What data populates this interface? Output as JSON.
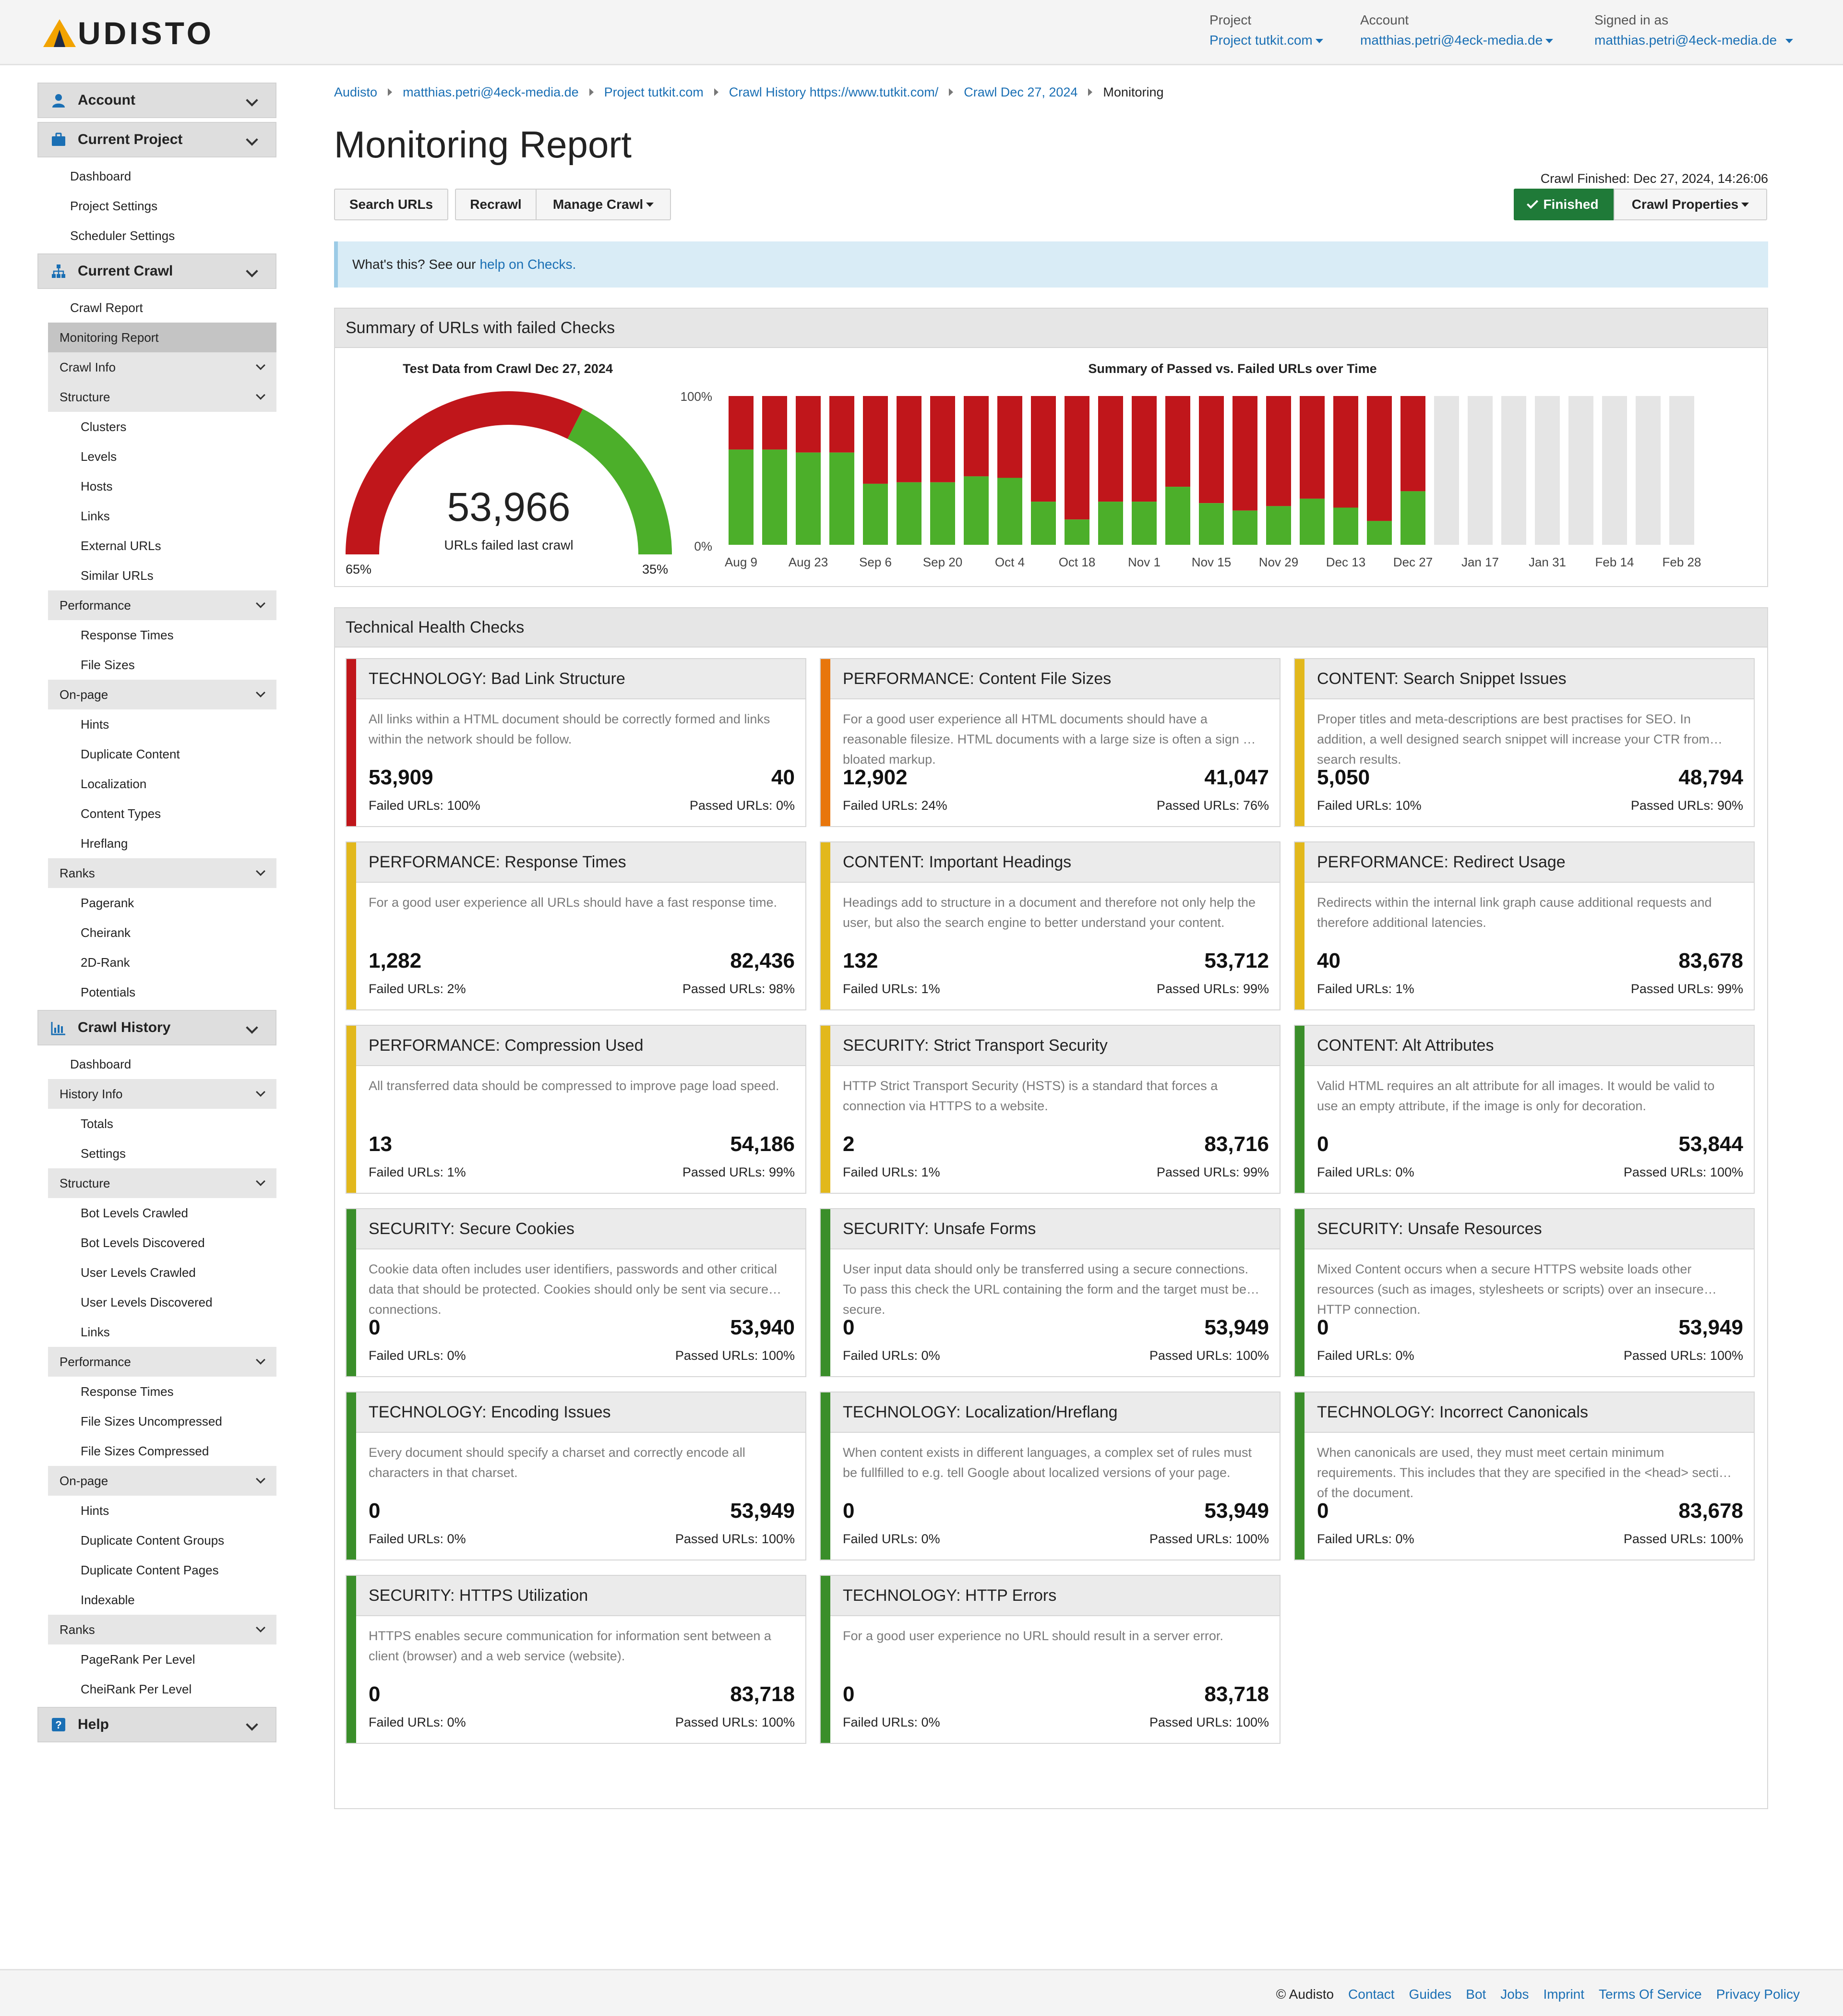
{
  "header": {
    "logo_text": "UDISTO",
    "project_label": "Project",
    "project_value": "Project tutkit.com",
    "account_label": "Account",
    "account_value": "matthias.petri@4eck-media.de",
    "signed_label": "Signed in as",
    "signed_value": "matthias.petri@4eck-media.de"
  },
  "sidebar": {
    "account": "Account",
    "current_project": "Current Project",
    "project_items": [
      "Dashboard",
      "Project Settings",
      "Scheduler Settings"
    ],
    "current_crawl": "Current Crawl",
    "crawl_report": "Crawl Report",
    "monitoring_report": "Monitoring Report",
    "crawl_info": "Crawl Info",
    "structure": "Structure",
    "structure_items": [
      "Clusters",
      "Levels",
      "Hosts",
      "Links",
      "External URLs",
      "Similar URLs"
    ],
    "performance": "Performance",
    "performance_items": [
      "Response Times",
      "File Sizes"
    ],
    "onpage": "On-page",
    "onpage_items": [
      "Hints",
      "Duplicate Content",
      "Localization",
      "Content Types",
      "Hreflang"
    ],
    "ranks": "Ranks",
    "ranks_items": [
      "Pagerank",
      "Cheirank",
      "2D-Rank",
      "Potentials"
    ],
    "crawl_history": "Crawl History",
    "history_dashboard": "Dashboard",
    "history_info": "History Info",
    "history_info_items": [
      "Totals",
      "Settings"
    ],
    "h_structure": "Structure",
    "h_structure_items": [
      "Bot Levels Crawled",
      "Bot Levels Discovered",
      "User Levels Crawled",
      "User Levels Discovered",
      "Links"
    ],
    "h_performance": "Performance",
    "h_performance_items": [
      "Response Times",
      "File Sizes Uncompressed",
      "File Sizes Compressed"
    ],
    "h_onpage": "On-page",
    "h_onpage_items": [
      "Hints",
      "Duplicate Content Groups",
      "Duplicate Content Pages",
      "Indexable"
    ],
    "h_ranks": "Ranks",
    "h_ranks_items": [
      "PageRank Per Level",
      "CheiRank Per Level"
    ],
    "help": "Help"
  },
  "breadcrumb": [
    "Audisto",
    "matthias.petri@4eck-media.de",
    "Project tutkit.com",
    "Crawl History https://www.tutkit.com/",
    "Crawl Dec 27, 2024",
    "Monitoring"
  ],
  "page_title": "Monitoring Report",
  "toolbar": {
    "search_urls": "Search URLs",
    "recrawl": "Recrawl",
    "manage_crawl": "Manage Crawl",
    "crawl_finished": "Crawl Finished: Dec 27, 2024, 14:26:06",
    "finished": "Finished",
    "crawl_properties": "Crawl Properties"
  },
  "info": {
    "text": "What's this? See our",
    "link": "help on Checks."
  },
  "summary": {
    "heading": "Summary of URLs with failed Checks",
    "gauge_title": "Test Data from Crawl Dec 27, 2024",
    "gauge_value": "53,966",
    "gauge_caption": "URLs failed last crawl",
    "gauge_left": "65%",
    "gauge_right": "35%",
    "failed_fraction": 0.65,
    "chart_title": "Summary of Passed vs. Failed URLs over Time"
  },
  "chart_data": {
    "type": "bar",
    "title": "Summary of Passed vs. Failed URLs over Time",
    "y_ticks": [
      "100%",
      "0%"
    ],
    "x_tick_labels": [
      "Aug 9",
      "Aug 23",
      "Sep 6",
      "Sep 20",
      "Oct 4",
      "Oct 18",
      "Nov 1",
      "Nov 15",
      "Nov 29",
      "Dec 13",
      "Dec 27",
      "Jan 17",
      "Jan 31",
      "Feb 14",
      "Feb 28"
    ],
    "ylim": [
      0,
      100
    ],
    "stacked": true,
    "colors": {
      "passed": "#4caf2a",
      "failed": "#c0161b",
      "empty": "#e5e5e5"
    },
    "passed_pct": [
      64,
      64,
      62,
      62,
      41,
      42,
      42,
      46,
      45,
      29,
      17,
      29,
      29,
      39,
      28,
      23,
      26,
      31,
      25,
      16,
      36,
      null,
      null,
      null,
      null,
      null,
      null,
      null,
      null
    ],
    "series": [
      {
        "name": "Passed",
        "values": [
          64,
          64,
          62,
          62,
          41,
          42,
          42,
          46,
          45,
          29,
          17,
          29,
          29,
          39,
          28,
          23,
          26,
          31,
          25,
          16,
          36
        ]
      },
      {
        "name": "Failed",
        "values": [
          36,
          36,
          38,
          38,
          59,
          58,
          58,
          54,
          55,
          71,
          83,
          71,
          71,
          61,
          72,
          77,
          74,
          69,
          75,
          84,
          64
        ]
      }
    ]
  },
  "checks": {
    "heading": "Technical Health Checks",
    "colors": {
      "red": "#c0161b",
      "orange": "#e8760c",
      "yellow": "#e2b81c",
      "green": "#3a8e2a"
    },
    "items": [
      {
        "title": "TECHNOLOGY: Bad Link Structure",
        "desc": "All links within a HTML document should be correctly formed and links within the network should be follow.",
        "failed": "53,909",
        "passed": "40",
        "failed_lbl": "Failed URLs: 100%",
        "passed_lbl": "Passed URLs: 0%",
        "color": "red"
      },
      {
        "title": "PERFORMANCE: Content File Sizes",
        "desc": "For a good user experience all HTML documents should have a reasonable filesize. HTML documents with a large size is often a sign of bloated markup.",
        "failed": "12,902",
        "passed": "41,047",
        "failed_lbl": "Failed URLs: 24%",
        "passed_lbl": "Passed URLs: 76%",
        "color": "orange"
      },
      {
        "title": "CONTENT: Search Snippet Issues",
        "desc": "Proper titles and meta-descriptions are best practises for SEO. In addition, a well designed search snippet will increase your CTR from search results.",
        "failed": "5,050",
        "passed": "48,794",
        "failed_lbl": "Failed URLs: 10%",
        "passed_lbl": "Passed URLs: 90%",
        "color": "yellow"
      },
      {
        "title": "PERFORMANCE: Response Times",
        "desc": "For a good user experience all URLs should have a fast response time.",
        "failed": "1,282",
        "passed": "82,436",
        "failed_lbl": "Failed URLs: 2%",
        "passed_lbl": "Passed URLs: 98%",
        "color": "yellow"
      },
      {
        "title": "CONTENT: Important Headings",
        "desc": "Headings add to structure in a document and therefore not only help the user, but also the search engine to better understand your content.",
        "failed": "132",
        "passed": "53,712",
        "failed_lbl": "Failed URLs: 1%",
        "passed_lbl": "Passed URLs: 99%",
        "color": "yellow"
      },
      {
        "title": "PERFORMANCE: Redirect Usage",
        "desc": "Redirects within the internal link graph cause additional requests and therefore additional latencies.",
        "failed": "40",
        "passed": "83,678",
        "failed_lbl": "Failed URLs: 1%",
        "passed_lbl": "Passed URLs: 99%",
        "color": "yellow"
      },
      {
        "title": "PERFORMANCE: Compression Used",
        "desc": "All transferred data should be compressed to improve page load speed.",
        "failed": "13",
        "passed": "54,186",
        "failed_lbl": "Failed URLs: 1%",
        "passed_lbl": "Passed URLs: 99%",
        "color": "yellow"
      },
      {
        "title": "SECURITY: Strict Transport Security",
        "desc": "HTTP Strict Transport Security (HSTS) is a standard that forces a connection via HTTPS to a website.",
        "failed": "2",
        "passed": "83,716",
        "failed_lbl": "Failed URLs: 1%",
        "passed_lbl": "Passed URLs: 99%",
        "color": "yellow"
      },
      {
        "title": "CONTENT: Alt Attributes",
        "desc": "Valid HTML requires an alt attribute for all images. It would be valid to use an empty attribute, if the image is only for decoration.",
        "failed": "0",
        "passed": "53,844",
        "failed_lbl": "Failed URLs: 0%",
        "passed_lbl": "Passed URLs: 100%",
        "color": "green"
      },
      {
        "title": "SECURITY: Secure Cookies",
        "desc": "Cookie data often includes user identifiers, passwords and other critical data that should be protected. Cookies should only be sent via secure connections.",
        "failed": "0",
        "passed": "53,940",
        "failed_lbl": "Failed URLs: 0%",
        "passed_lbl": "Passed URLs: 100%",
        "color": "green"
      },
      {
        "title": "SECURITY: Unsafe Forms",
        "desc": "User input data should only be transferred using a secure connections. To pass this check the URL containing the form and the target must be secure.",
        "failed": "0",
        "passed": "53,949",
        "failed_lbl": "Failed URLs: 0%",
        "passed_lbl": "Passed URLs: 100%",
        "color": "green"
      },
      {
        "title": "SECURITY: Unsafe Resources",
        "desc": "Mixed Content occurs when a secure HTTPS website loads other resources (such as images, stylesheets or scripts) over an insecure HTTP connection.",
        "failed": "0",
        "passed": "53,949",
        "failed_lbl": "Failed URLs: 0%",
        "passed_lbl": "Passed URLs: 100%",
        "color": "green"
      },
      {
        "title": "TECHNOLOGY: Encoding Issues",
        "desc": "Every document should specify a charset and correctly encode all characters in that charset.",
        "failed": "0",
        "passed": "53,949",
        "failed_lbl": "Failed URLs: 0%",
        "passed_lbl": "Passed URLs: 100%",
        "color": "green"
      },
      {
        "title": "TECHNOLOGY: Localization/Hreflang",
        "desc": "When content exists in different languages, a complex set of rules must be fullfilled to e.g. tell Google about localized versions of your page.",
        "failed": "0",
        "passed": "53,949",
        "failed_lbl": "Failed URLs: 0%",
        "passed_lbl": "Passed URLs: 100%",
        "color": "green"
      },
      {
        "title": "TECHNOLOGY: Incorrect Canonicals",
        "desc": "When canonicals are used, they must meet certain minimum requirements. This includes that they are specified in the <head> section of the document.",
        "failed": "0",
        "passed": "83,678",
        "failed_lbl": "Failed URLs: 0%",
        "passed_lbl": "Passed URLs: 100%",
        "color": "green"
      },
      {
        "title": "SECURITY: HTTPS Utilization",
        "desc": "HTTPS enables secure communication for information sent between a client (browser) and a web service (website).",
        "failed": "0",
        "passed": "83,718",
        "failed_lbl": "Failed URLs: 0%",
        "passed_lbl": "Passed URLs: 100%",
        "color": "green"
      },
      {
        "title": "TECHNOLOGY: HTTP Errors",
        "desc": "For a good user experience no URL should result in a server error.",
        "failed": "0",
        "passed": "83,718",
        "failed_lbl": "Failed URLs: 0%",
        "passed_lbl": "Passed URLs: 100%",
        "color": "green"
      }
    ]
  },
  "footer": {
    "copyright": "© Audisto",
    "links": [
      "Contact",
      "Guides",
      "Bot",
      "Jobs",
      "Imprint",
      "Terms Of Service",
      "Privacy Policy"
    ]
  }
}
